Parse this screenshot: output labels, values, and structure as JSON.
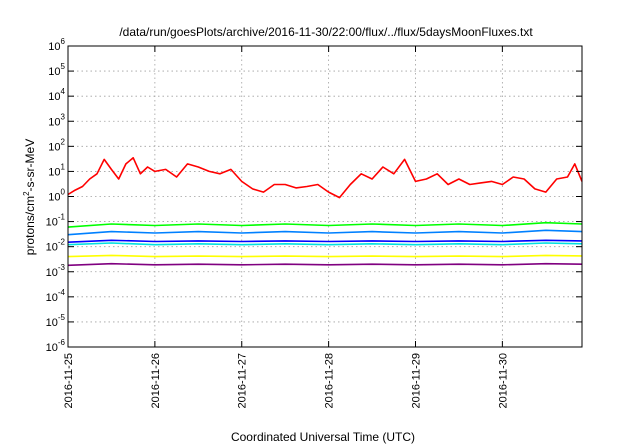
{
  "chart_data": {
    "type": "line",
    "title": "/data/run/goesPlots/archive/2016-11-30/22:00/flux/../flux/5daysMoonFluxes.txt",
    "xlabel": "Coordinated Universal Time (UTC)",
    "ylabel": {
      "base": "protons/cm",
      "sup": "2",
      "rest": "-s-sr-MeV"
    },
    "y_scale": "log",
    "ylim": [
      1e-06,
      1000000.0
    ],
    "y_ticks": [
      {
        "value": 1e-06,
        "base": "10",
        "exp": "-6"
      },
      {
        "value": 1e-05,
        "base": "10",
        "exp": "-5"
      },
      {
        "value": 0.0001,
        "base": "10",
        "exp": "-4"
      },
      {
        "value": 0.001,
        "base": "10",
        "exp": "-3"
      },
      {
        "value": 0.01,
        "base": "10",
        "exp": "-2"
      },
      {
        "value": 0.1,
        "base": "10",
        "exp": "-1"
      },
      {
        "value": 1,
        "base": "10",
        "exp": "0"
      },
      {
        "value": 10,
        "base": "10",
        "exp": "1"
      },
      {
        "value": 100,
        "base": "10",
        "exp": "2"
      },
      {
        "value": 1000,
        "base": "10",
        "exp": "3"
      },
      {
        "value": 10000,
        "base": "10",
        "exp": "4"
      },
      {
        "value": 100000,
        "base": "10",
        "exp": "5"
      },
      {
        "value": 1000000,
        "base": "10",
        "exp": "6"
      }
    ],
    "xlim": [
      "2016-11-25 00:00",
      "2016-11-30 22:00"
    ],
    "x_ticks": [
      "2016-11-25",
      "2016-11-26",
      "2016-11-27",
      "2016-11-28",
      "2016-11-29",
      "2016-11-30"
    ],
    "grid": true,
    "legend": "none",
    "series": [
      {
        "color": "#ff0000",
        "x": [
          "2016-11-25 00:00",
          "2016-11-25 02:00",
          "2016-11-25 04:00",
          "2016-11-25 06:00",
          "2016-11-25 08:00",
          "2016-11-25 10:00",
          "2016-11-25 12:00",
          "2016-11-25 14:00",
          "2016-11-25 16:00",
          "2016-11-25 18:00",
          "2016-11-25 20:00",
          "2016-11-25 22:00",
          "2016-11-26 00:00",
          "2016-11-26 03:00",
          "2016-11-26 06:00",
          "2016-11-26 09:00",
          "2016-11-26 12:00",
          "2016-11-26 15:00",
          "2016-11-26 18:00",
          "2016-11-26 21:00",
          "2016-11-27 00:00",
          "2016-11-27 03:00",
          "2016-11-27 06:00",
          "2016-11-27 09:00",
          "2016-11-27 12:00",
          "2016-11-27 15:00",
          "2016-11-27 18:00",
          "2016-11-27 21:00",
          "2016-11-28 00:00",
          "2016-11-28 03:00",
          "2016-11-28 06:00",
          "2016-11-28 09:00",
          "2016-11-28 12:00",
          "2016-11-28 15:00",
          "2016-11-28 18:00",
          "2016-11-28 21:00",
          "2016-11-29 00:00",
          "2016-11-29 03:00",
          "2016-11-29 06:00",
          "2016-11-29 09:00",
          "2016-11-29 12:00",
          "2016-11-29 15:00",
          "2016-11-29 18:00",
          "2016-11-29 21:00",
          "2016-11-30 00:00",
          "2016-11-30 03:00",
          "2016-11-30 06:00",
          "2016-11-30 09:00",
          "2016-11-30 12:00",
          "2016-11-30 15:00",
          "2016-11-30 18:00",
          "2016-11-30 20:00",
          "2016-11-30 22:00"
        ],
        "y": [
          1.2,
          1.8,
          2.5,
          5,
          8,
          30,
          12,
          5,
          20,
          35,
          8,
          15,
          10,
          12,
          6,
          20,
          15,
          10,
          8,
          12,
          4,
          2,
          1.5,
          3,
          3,
          2.2,
          2.5,
          3,
          1.5,
          0.9,
          3,
          8,
          5,
          15,
          8,
          30,
          4,
          5,
          8,
          3,
          5,
          3,
          3.5,
          4,
          3,
          6,
          5,
          2,
          1.5,
          5,
          6,
          20,
          4
        ]
      },
      {
        "color": "#00ff00",
        "x": [
          "2016-11-25 00:00",
          "2016-11-25 12:00",
          "2016-11-26 00:00",
          "2016-11-26 12:00",
          "2016-11-27 00:00",
          "2016-11-27 12:00",
          "2016-11-28 00:00",
          "2016-11-28 12:00",
          "2016-11-29 00:00",
          "2016-11-29 12:00",
          "2016-11-30 00:00",
          "2016-11-30 12:00",
          "2016-11-30 22:00"
        ],
        "y": [
          0.06,
          0.08,
          0.07,
          0.08,
          0.07,
          0.08,
          0.07,
          0.08,
          0.07,
          0.08,
          0.07,
          0.09,
          0.08
        ]
      },
      {
        "color": "#0080ff",
        "x": [
          "2016-11-25 00:00",
          "2016-11-25 12:00",
          "2016-11-26 00:00",
          "2016-11-26 12:00",
          "2016-11-27 00:00",
          "2016-11-27 12:00",
          "2016-11-28 00:00",
          "2016-11-28 12:00",
          "2016-11-29 00:00",
          "2016-11-29 12:00",
          "2016-11-30 00:00",
          "2016-11-30 12:00",
          "2016-11-30 22:00"
        ],
        "y": [
          0.03,
          0.04,
          0.035,
          0.04,
          0.035,
          0.04,
          0.035,
          0.04,
          0.035,
          0.04,
          0.035,
          0.045,
          0.04
        ]
      },
      {
        "color": "#00e0e0",
        "x": [
          "2016-11-25 00:00",
          "2016-11-25 12:00",
          "2016-11-26 00:00",
          "2016-11-26 12:00",
          "2016-11-27 00:00",
          "2016-11-27 12:00",
          "2016-11-28 00:00",
          "2016-11-28 12:00",
          "2016-11-29 00:00",
          "2016-11-29 12:00",
          "2016-11-30 00:00",
          "2016-11-30 12:00",
          "2016-11-30 22:00"
        ],
        "y": [
          0.012,
          0.014,
          0.012,
          0.013,
          0.012,
          0.013,
          0.012,
          0.013,
          0.012,
          0.013,
          0.012,
          0.014,
          0.013
        ]
      },
      {
        "color": "#0000ff",
        "x": [
          "2016-11-25 00:00",
          "2016-11-25 12:00",
          "2016-11-26 00:00",
          "2016-11-26 12:00",
          "2016-11-27 00:00",
          "2016-11-27 12:00",
          "2016-11-28 00:00",
          "2016-11-28 12:00",
          "2016-11-29 00:00",
          "2016-11-29 12:00",
          "2016-11-30 00:00",
          "2016-11-30 12:00",
          "2016-11-30 22:00"
        ],
        "y": [
          0.015,
          0.018,
          0.016,
          0.017,
          0.016,
          0.017,
          0.016,
          0.017,
          0.016,
          0.017,
          0.016,
          0.018,
          0.017
        ]
      },
      {
        "color": "#ffff00",
        "x": [
          "2016-11-25 00:00",
          "2016-11-25 12:00",
          "2016-11-26 00:00",
          "2016-11-26 12:00",
          "2016-11-27 00:00",
          "2016-11-27 12:00",
          "2016-11-28 00:00",
          "2016-11-28 12:00",
          "2016-11-29 00:00",
          "2016-11-29 12:00",
          "2016-11-30 00:00",
          "2016-11-30 12:00",
          "2016-11-30 22:00"
        ],
        "y": [
          0.004,
          0.0045,
          0.004,
          0.0042,
          0.004,
          0.0042,
          0.004,
          0.0042,
          0.004,
          0.0042,
          0.004,
          0.0045,
          0.0043
        ]
      },
      {
        "color": "#800080",
        "x": [
          "2016-11-25 00:00",
          "2016-11-25 12:00",
          "2016-11-26 00:00",
          "2016-11-26 12:00",
          "2016-11-27 00:00",
          "2016-11-27 12:00",
          "2016-11-28 00:00",
          "2016-11-28 12:00",
          "2016-11-29 00:00",
          "2016-11-29 12:00",
          "2016-11-30 00:00",
          "2016-11-30 12:00",
          "2016-11-30 22:00"
        ],
        "y": [
          0.0018,
          0.0021,
          0.0019,
          0.002,
          0.0019,
          0.002,
          0.0019,
          0.002,
          0.0019,
          0.002,
          0.0019,
          0.0021,
          0.002
        ]
      }
    ]
  }
}
